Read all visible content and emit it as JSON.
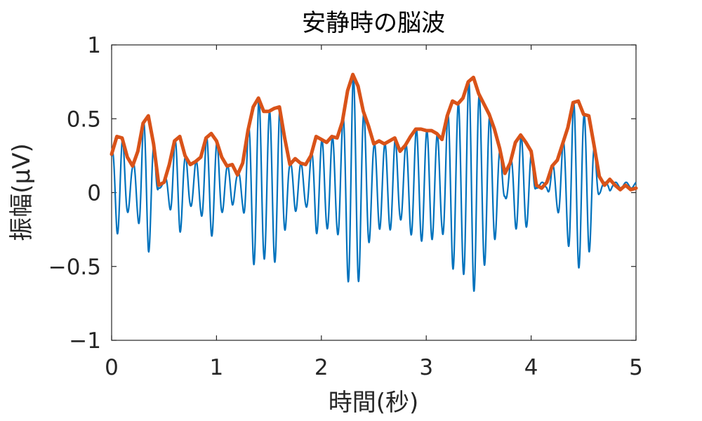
{
  "chart_data": {
    "type": "line",
    "title": "安静時の脳波",
    "xlabel": "時間(秒)",
    "ylabel": "振幅(μV)",
    "xlim": [
      0,
      5
    ],
    "ylim": [
      -1,
      1
    ],
    "x_ticks": [
      0,
      1,
      2,
      3,
      4,
      5
    ],
    "y_ticks": [
      -1,
      -0.5,
      0,
      0.5,
      1
    ],
    "x_tick_labels": [
      "0",
      "1",
      "2",
      "3",
      "4",
      "5"
    ],
    "y_tick_labels": [
      "−1",
      "−0.5",
      "0",
      "0.5",
      "1"
    ],
    "grid": false,
    "legend": "none",
    "series": [
      {
        "color": "#0072BD",
        "style": "oscillation",
        "carrier_hz": 10,
        "baseline": 0.05
      },
      {
        "color": "#D95319",
        "style": "envelope",
        "x": [
          0,
          0.05,
          0.1,
          0.15,
          0.2,
          0.25,
          0.3,
          0.35,
          0.4,
          0.45,
          0.5,
          0.55,
          0.6,
          0.65,
          0.7,
          0.75,
          0.8,
          0.85,
          0.9,
          0.95,
          1.0,
          1.05,
          1.1,
          1.15,
          1.2,
          1.25,
          1.3,
          1.35,
          1.4,
          1.45,
          1.5,
          1.55,
          1.6,
          1.65,
          1.7,
          1.75,
          1.8,
          1.85,
          1.9,
          1.95,
          2.0,
          2.05,
          2.1,
          2.15,
          2.2,
          2.25,
          2.3,
          2.35,
          2.4,
          2.45,
          2.5,
          2.55,
          2.6,
          2.65,
          2.7,
          2.75,
          2.8,
          2.85,
          2.9,
          2.95,
          3.0,
          3.05,
          3.1,
          3.15,
          3.2,
          3.25,
          3.3,
          3.35,
          3.4,
          3.45,
          3.5,
          3.55,
          3.6,
          3.65,
          3.7,
          3.75,
          3.8,
          3.85,
          3.9,
          3.95,
          4.0,
          4.05,
          4.1,
          4.15,
          4.2,
          4.25,
          4.3,
          4.35,
          4.4,
          4.45,
          4.5,
          4.55,
          4.6,
          4.65,
          4.7,
          4.75,
          4.8,
          4.85,
          4.9,
          4.95,
          5.0
        ],
        "values": [
          0.26,
          0.38,
          0.37,
          0.24,
          0.18,
          0.28,
          0.47,
          0.52,
          0.33,
          0.05,
          0.07,
          0.19,
          0.35,
          0.38,
          0.25,
          0.19,
          0.21,
          0.24,
          0.37,
          0.4,
          0.35,
          0.24,
          0.18,
          0.19,
          0.12,
          0.2,
          0.42,
          0.58,
          0.64,
          0.55,
          0.55,
          0.57,
          0.58,
          0.37,
          0.19,
          0.23,
          0.2,
          0.19,
          0.25,
          0.38,
          0.36,
          0.34,
          0.38,
          0.37,
          0.48,
          0.69,
          0.8,
          0.72,
          0.55,
          0.45,
          0.33,
          0.35,
          0.33,
          0.35,
          0.37,
          0.28,
          0.32,
          0.38,
          0.43,
          0.43,
          0.42,
          0.42,
          0.4,
          0.36,
          0.52,
          0.62,
          0.6,
          0.64,
          0.75,
          0.78,
          0.67,
          0.6,
          0.53,
          0.43,
          0.3,
          0.13,
          0.2,
          0.34,
          0.39,
          0.34,
          0.28,
          0.05,
          0.03,
          0.07,
          0.18,
          0.22,
          0.33,
          0.44,
          0.61,
          0.62,
          0.53,
          0.52,
          0.32,
          0.11,
          0.05,
          0.09,
          0.05,
          0.02,
          0.05,
          0.02,
          0.03
        ]
      }
    ]
  }
}
